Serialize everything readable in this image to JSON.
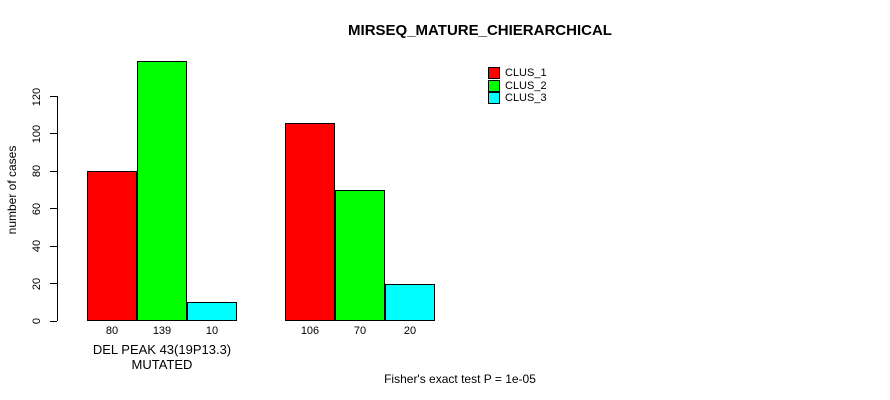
{
  "title": "MIRSEQ_MATURE_CHIERARCHICAL",
  "footer": "Fisher's exact test P = 1e-05",
  "axes": {
    "ylabel": "number of cases",
    "xlabel_group1": "DEL PEAK 43(19P13.3) MUTATED"
  },
  "chart_data": {
    "type": "bar",
    "title": "MIRSEQ_MATURE_CHIERARCHICAL",
    "ylabel": "number of cases",
    "xlabel": "DEL PEAK 43(19P13.3) MUTATED",
    "yticks": [
      0,
      20,
      40,
      60,
      80,
      100,
      120
    ],
    "ylim": [
      0,
      139
    ],
    "grid": false,
    "legend_position": "top-right",
    "bar_border_color": "#000000",
    "categories": [
      "DEL PEAK 43(19P13.3) MUTATED",
      ""
    ],
    "series": [
      {
        "name": "CLUS_1",
        "color": "#FF0000",
        "values": [
          80,
          106
        ]
      },
      {
        "name": "CLUS_2",
        "color": "#00FF00",
        "values": [
          139,
          70
        ]
      },
      {
        "name": "CLUS_3",
        "color": "#00FFFF",
        "values": [
          10,
          20
        ]
      }
    ],
    "groups": [
      {
        "label": "DEL PEAK 43(19P13.3) MUTATED",
        "values": [
          80,
          139,
          10
        ]
      },
      {
        "label": "",
        "values": [
          106,
          70,
          20
        ]
      }
    ],
    "annotation": "Fisher's exact test P = 1e-05"
  }
}
